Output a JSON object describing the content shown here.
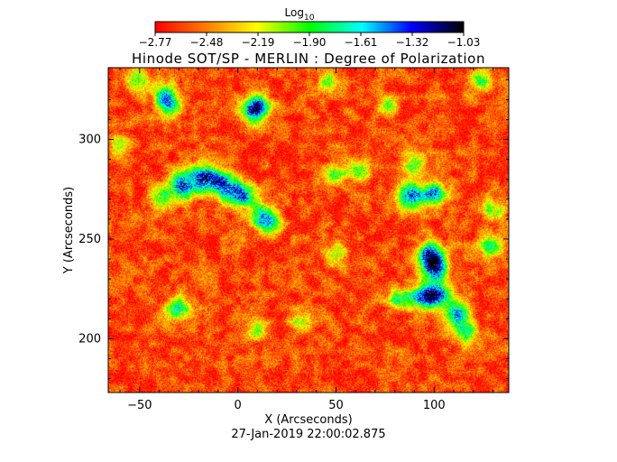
{
  "chart_data": {
    "type": "heatmap",
    "title": "Hinode SOT/SP - MERLIN : Degree of Polarization",
    "xlabel": "X (Arcseconds)",
    "ylabel": "Y (Arcseconds)",
    "timestamp": "27-Jan-2019 22:00:02.875",
    "xlim": [
      -66,
      138
    ],
    "ylim": [
      173,
      336
    ],
    "x_ticks": [
      -50,
      0,
      50,
      100
    ],
    "x_tick_labels": [
      "−50",
      "0",
      "50",
      "100"
    ],
    "y_ticks": [
      200,
      250,
      300
    ],
    "y_tick_labels": [
      "200",
      "250",
      "300"
    ],
    "colorbar": {
      "label_base": "Log",
      "label_sub": "10",
      "range": [
        -2.77,
        -1.03
      ],
      "ticks": [
        -2.77,
        -2.48,
        -2.19,
        -1.9,
        -1.61,
        -1.32,
        -1.03
      ],
      "tick_labels": [
        "−2.77",
        "−2.48",
        "−2.19",
        "−1.90",
        "−1.61",
        "−1.32",
        "−1.03"
      ],
      "colors": [
        "#ff0000",
        "#ff8000",
        "#ffff00",
        "#00ff00",
        "#00ffff",
        "#0000ff",
        "#000000"
      ]
    },
    "background_level": -2.62,
    "features": [
      {
        "x": -29,
        "y": 277,
        "intensity": 0.95
      },
      {
        "x": -17,
        "y": 281,
        "intensity": 0.98
      },
      {
        "x": -7,
        "y": 277,
        "intensity": 0.9
      },
      {
        "x": 2,
        "y": 272,
        "intensity": 0.8
      },
      {
        "x": -40,
        "y": 270,
        "intensity": 0.55
      },
      {
        "x": 12,
        "y": 262,
        "intensity": 0.65
      },
      {
        "x": 16,
        "y": 258,
        "intensity": 0.55
      },
      {
        "x": 98,
        "y": 242,
        "intensity": 0.92
      },
      {
        "x": 100,
        "y": 235,
        "intensity": 0.85
      },
      {
        "x": 94,
        "y": 221,
        "intensity": 0.85
      },
      {
        "x": 102,
        "y": 222,
        "intensity": 0.85
      },
      {
        "x": 82,
        "y": 220,
        "intensity": 0.6
      },
      {
        "x": 111,
        "y": 212,
        "intensity": 0.8
      },
      {
        "x": 116,
        "y": 203,
        "intensity": 0.6
      },
      {
        "x": 88,
        "y": 272,
        "intensity": 0.85
      },
      {
        "x": 100,
        "y": 273,
        "intensity": 0.8
      },
      {
        "x": 90,
        "y": 288,
        "intensity": 0.55
      },
      {
        "x": 62,
        "y": 285,
        "intensity": 0.55
      },
      {
        "x": 50,
        "y": 283,
        "intensity": 0.45
      },
      {
        "x": 7,
        "y": 314,
        "intensity": 0.8
      },
      {
        "x": 11,
        "y": 318,
        "intensity": 0.65
      },
      {
        "x": -37,
        "y": 323,
        "intensity": 0.65
      },
      {
        "x": -35,
        "y": 317,
        "intensity": 0.6
      },
      {
        "x": -31,
        "y": 215,
        "intensity": 0.7
      },
      {
        "x": 9,
        "y": 204,
        "intensity": 0.45
      },
      {
        "x": 128,
        "y": 247,
        "intensity": 0.6
      },
      {
        "x": 130,
        "y": 265,
        "intensity": 0.5
      },
      {
        "x": -60,
        "y": 297,
        "intensity": 0.4
      },
      {
        "x": 32,
        "y": 209,
        "intensity": 0.45
      },
      {
        "x": 50,
        "y": 243,
        "intensity": 0.45
      },
      {
        "x": 123,
        "y": 330,
        "intensity": 0.5
      },
      {
        "x": -52,
        "y": 330,
        "intensity": 0.55
      },
      {
        "x": 45,
        "y": 330,
        "intensity": 0.4
      },
      {
        "x": 76,
        "y": 318,
        "intensity": 0.4
      }
    ]
  }
}
